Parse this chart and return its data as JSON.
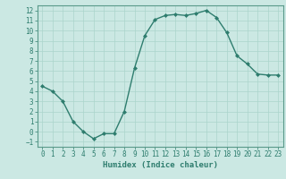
{
  "x": [
    0,
    1,
    2,
    3,
    4,
    5,
    6,
    7,
    8,
    9,
    10,
    11,
    12,
    13,
    14,
    15,
    16,
    17,
    18,
    19,
    20,
    21,
    22,
    23
  ],
  "y": [
    4.5,
    4.0,
    3.0,
    1.0,
    0.0,
    -0.7,
    -0.2,
    -0.2,
    2.0,
    6.3,
    9.5,
    11.1,
    11.5,
    11.6,
    11.5,
    11.7,
    12.0,
    11.3,
    9.8,
    7.5,
    6.7,
    5.7,
    5.6,
    5.6
  ],
  "line_color": "#2e7d6e",
  "marker": "D",
  "markersize": 2.0,
  "linewidth": 1.0,
  "xlabel": "Humidex (Indice chaleur)",
  "xlabel_fontsize": 6.5,
  "bg_color": "#cbe8e3",
  "grid_color": "#aad4cc",
  "xlim": [
    -0.5,
    23.5
  ],
  "ylim": [
    -1.5,
    12.5
  ],
  "yticks": [
    -1,
    0,
    1,
    2,
    3,
    4,
    5,
    6,
    7,
    8,
    9,
    10,
    11,
    12
  ],
  "xticks": [
    0,
    1,
    2,
    3,
    4,
    5,
    6,
    7,
    8,
    9,
    10,
    11,
    12,
    13,
    14,
    15,
    16,
    17,
    18,
    19,
    20,
    21,
    22,
    23
  ],
  "tick_fontsize": 5.5,
  "tick_color": "#2e7d6e",
  "spine_color": "#5a9a8a"
}
